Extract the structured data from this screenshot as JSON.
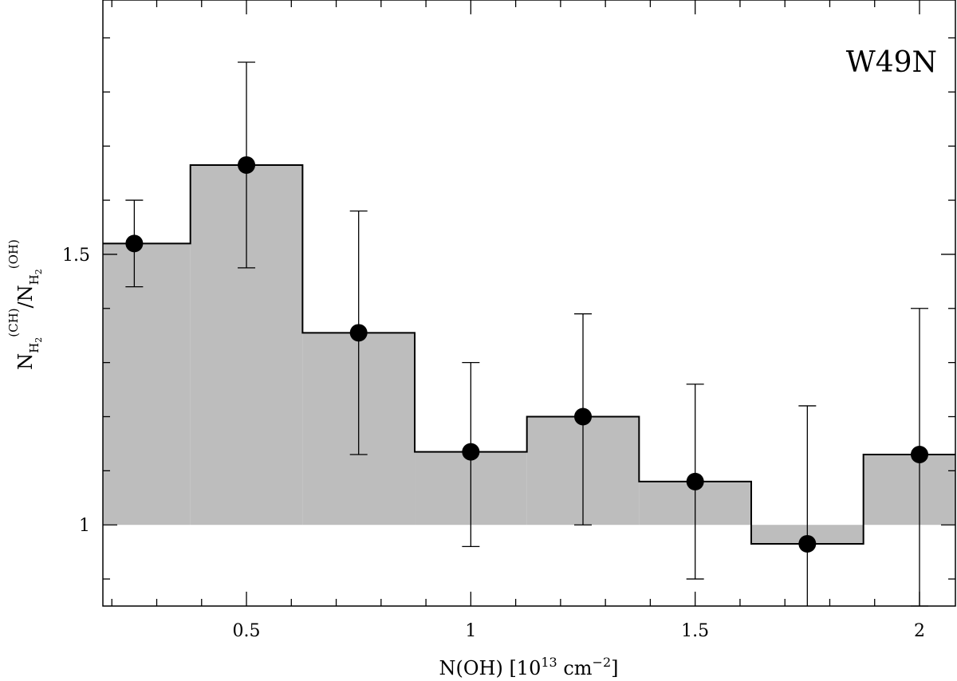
{
  "chart_data": {
    "type": "step-histogram-with-points",
    "panel_label": "W49N",
    "xlabel": {
      "main": "N(OH)  [10",
      "sup1": "13",
      "mid": " cm",
      "sup2": "−2",
      "end": "]"
    },
    "ylabel": {
      "part1": "N",
      "sub1": "H",
      "subsub1": "2",
      "sup1": "(CH)",
      "slash": "/N",
      "sub2": "H",
      "subsub2": "2",
      "sup2": "(OH)"
    },
    "xlim": [
      0.18,
      2.08
    ],
    "ylim": [
      0.85,
      1.97
    ],
    "baseline": 1.0,
    "x_ticks": [
      {
        "value": 0.5,
        "label": "0.5"
      },
      {
        "value": 1.0,
        "label": "1"
      },
      {
        "value": 1.5,
        "label": "1.5"
      },
      {
        "value": 2.0,
        "label": "2"
      }
    ],
    "y_ticks": [
      {
        "value": 1.0,
        "label": "1"
      },
      {
        "value": 1.5,
        "label": "1.5"
      }
    ],
    "bin_width": 0.25,
    "points": [
      {
        "x": 0.25,
        "y": 1.52,
        "err_low": 1.44,
        "err_high": 1.6
      },
      {
        "x": 0.5,
        "y": 1.665,
        "err_low": 1.475,
        "err_high": 1.855
      },
      {
        "x": 0.75,
        "y": 1.355,
        "err_low": 1.13,
        "err_high": 1.58
      },
      {
        "x": 1.0,
        "y": 1.135,
        "err_low": 0.96,
        "err_high": 1.3
      },
      {
        "x": 1.25,
        "y": 1.2,
        "err_low": 1.0,
        "err_high": 1.39
      },
      {
        "x": 1.5,
        "y": 1.08,
        "err_low": 0.9,
        "err_high": 1.26
      },
      {
        "x": 1.75,
        "y": 0.965,
        "err_low": 0.8,
        "err_high": 1.22
      },
      {
        "x": 2.0,
        "y": 1.13,
        "err_low": 0.85,
        "err_high": 1.4
      }
    ],
    "colors": {
      "fill": "#bdbdbd",
      "line": "#000000",
      "marker": "#000000"
    }
  }
}
